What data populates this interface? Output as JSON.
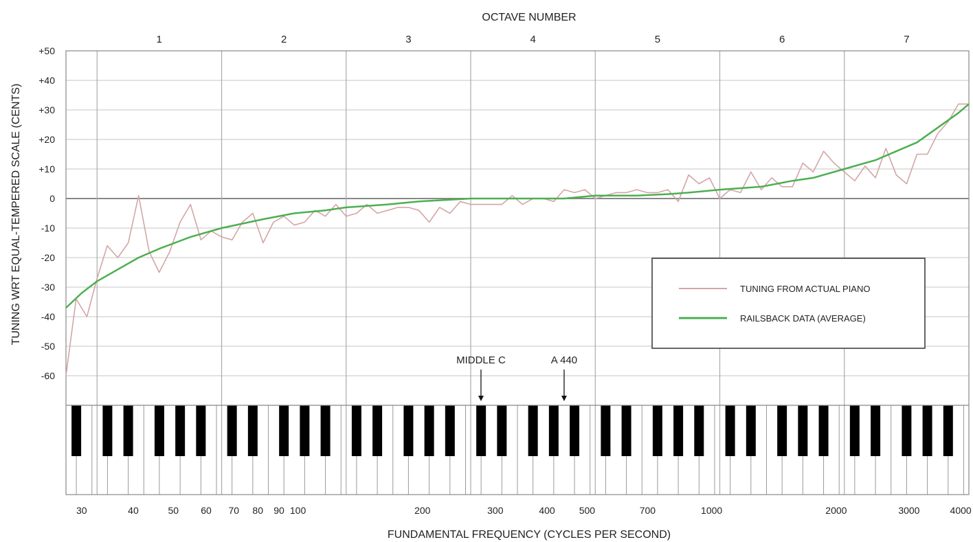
{
  "chart_data": {
    "type": "line",
    "title": "OCTAVE NUMBER",
    "xlabel": "FUNDAMENTAL FREQUENCY (CYCLES PER SECOND)",
    "ylabel": "TUNING WRT EQUAL-TEMPERED SCALE (CENTS)",
    "x_scale": "log",
    "xlim": [
      27.5,
      4186
    ],
    "ylim": [
      -70,
      50
    ],
    "grid": true,
    "legend_position": "right",
    "y_ticks": [
      {
        "value": 50,
        "label": "+50"
      },
      {
        "value": 40,
        "label": "+40"
      },
      {
        "value": 30,
        "label": "+30"
      },
      {
        "value": 20,
        "label": "+20"
      },
      {
        "value": 10,
        "label": "+10"
      },
      {
        "value": 0,
        "label": "0"
      },
      {
        "value": -10,
        "label": "-10"
      },
      {
        "value": -20,
        "label": "-20"
      },
      {
        "value": -30,
        "label": "-30"
      },
      {
        "value": -40,
        "label": "-40"
      },
      {
        "value": -50,
        "label": "-50"
      },
      {
        "value": -60,
        "label": "-60"
      }
    ],
    "x_ticks": [
      {
        "value": 30,
        "label": "30"
      },
      {
        "value": 40,
        "label": "40"
      },
      {
        "value": 50,
        "label": "50"
      },
      {
        "value": 60,
        "label": "60"
      },
      {
        "value": 70,
        "label": "70"
      },
      {
        "value": 80,
        "label": "80"
      },
      {
        "value": 90,
        "label": "90"
      },
      {
        "value": 100,
        "label": "100"
      },
      {
        "value": 200,
        "label": "200"
      },
      {
        "value": 300,
        "label": "300"
      },
      {
        "value": 400,
        "label": "400"
      },
      {
        "value": 500,
        "label": "500"
      },
      {
        "value": 700,
        "label": "700"
      },
      {
        "value": 1000,
        "label": "1000"
      },
      {
        "value": 2000,
        "label": "2000"
      },
      {
        "value": 3000,
        "label": "3000"
      },
      {
        "value": 4000,
        "label": "4000"
      }
    ],
    "octave_boundaries": [
      32.7,
      65.4,
      130.8,
      261.6,
      523.3,
      1046.5,
      2093
    ],
    "octaves": [
      {
        "label": "1",
        "center": 46.2
      },
      {
        "label": "2",
        "center": 92.5
      },
      {
        "label": "3",
        "center": 185
      },
      {
        "label": "4",
        "center": 370
      },
      {
        "label": "5",
        "center": 740
      },
      {
        "label": "6",
        "center": 1480
      },
      {
        "label": "7",
        "center": 2960
      }
    ],
    "annotations": [
      {
        "label": "MIDDLE C",
        "x": 277
      },
      {
        "label": "A 440",
        "x": 440
      }
    ],
    "series": [
      {
        "name": "TUNING FROM ACTUAL PIANO",
        "color": "#d4a5a5",
        "points": [
          [
            27.5,
            -60
          ],
          [
            29.1,
            -34
          ],
          [
            30.9,
            -40
          ],
          [
            32.7,
            -27
          ],
          [
            34.6,
            -16
          ],
          [
            36.7,
            -20
          ],
          [
            38.9,
            -15
          ],
          [
            41.2,
            1
          ],
          [
            43.7,
            -18
          ],
          [
            46.2,
            -25
          ],
          [
            49.0,
            -18
          ],
          [
            51.9,
            -8
          ],
          [
            55.0,
            -2
          ],
          [
            58.3,
            -14
          ],
          [
            61.7,
            -11
          ],
          [
            65.4,
            -13
          ],
          [
            69.3,
            -14
          ],
          [
            73.4,
            -8
          ],
          [
            77.8,
            -5
          ],
          [
            82.4,
            -15
          ],
          [
            87.3,
            -8
          ],
          [
            92.5,
            -6
          ],
          [
            98.0,
            -9
          ],
          [
            103.8,
            -8
          ],
          [
            110.0,
            -4
          ],
          [
            116.5,
            -6
          ],
          [
            123.5,
            -2
          ],
          [
            130.8,
            -6
          ],
          [
            138.6,
            -5
          ],
          [
            146.8,
            -2
          ],
          [
            155.6,
            -5
          ],
          [
            164.8,
            -4
          ],
          [
            174.6,
            -3
          ],
          [
            185.0,
            -3
          ],
          [
            196.0,
            -4
          ],
          [
            207.7,
            -8
          ],
          [
            220.0,
            -3
          ],
          [
            233.1,
            -5
          ],
          [
            246.9,
            -1
          ],
          [
            261.6,
            -2
          ],
          [
            277.2,
            -2
          ],
          [
            293.7,
            -2
          ],
          [
            311.1,
            -2
          ],
          [
            329.6,
            1
          ],
          [
            349.2,
            -2
          ],
          [
            370.0,
            0
          ],
          [
            392.0,
            0
          ],
          [
            415.3,
            -1
          ],
          [
            440.0,
            3
          ],
          [
            466.2,
            2
          ],
          [
            493.9,
            3
          ],
          [
            523.3,
            0
          ],
          [
            554.4,
            1
          ],
          [
            587.3,
            2
          ],
          [
            622.3,
            2
          ],
          [
            659.3,
            3
          ],
          [
            698.5,
            2
          ],
          [
            740.0,
            2
          ],
          [
            784.0,
            3
          ],
          [
            830.6,
            -1
          ],
          [
            880.0,
            8
          ],
          [
            932.3,
            5
          ],
          [
            987.8,
            7
          ],
          [
            1046.5,
            0
          ],
          [
            1108.7,
            3
          ],
          [
            1174.7,
            2
          ],
          [
            1244.5,
            9
          ],
          [
            1318.5,
            3
          ],
          [
            1396.9,
            7
          ],
          [
            1480.0,
            4
          ],
          [
            1568.0,
            4
          ],
          [
            1661.2,
            12
          ],
          [
            1760.0,
            9
          ],
          [
            1864.7,
            16
          ],
          [
            1975.5,
            12
          ],
          [
            2093.0,
            9
          ],
          [
            2217.5,
            6
          ],
          [
            2349.3,
            11
          ],
          [
            2489.0,
            7
          ],
          [
            2637.0,
            17
          ],
          [
            2793.8,
            8
          ],
          [
            2960.0,
            5
          ],
          [
            3136.0,
            15
          ],
          [
            3322.4,
            15
          ],
          [
            3520.0,
            22
          ],
          [
            3729.3,
            26
          ],
          [
            3951.1,
            32
          ],
          [
            4186.0,
            32
          ]
        ]
      },
      {
        "name": "RAILSBACK DATA (AVERAGE)",
        "color": "#4caf50",
        "points": [
          [
            27.5,
            -37
          ],
          [
            30,
            -32
          ],
          [
            32.7,
            -28
          ],
          [
            36.7,
            -24
          ],
          [
            41.2,
            -20
          ],
          [
            46.2,
            -17
          ],
          [
            55,
            -13
          ],
          [
            65.4,
            -10
          ],
          [
            82.4,
            -7
          ],
          [
            98,
            -5
          ],
          [
            116.5,
            -4
          ],
          [
            130.8,
            -3
          ],
          [
            164.8,
            -2
          ],
          [
            196,
            -1
          ],
          [
            261.6,
            0
          ],
          [
            329.6,
            0
          ],
          [
            440,
            0
          ],
          [
            523.3,
            1
          ],
          [
            659.3,
            1
          ],
          [
            784,
            1.5
          ],
          [
            880,
            2
          ],
          [
            1046.5,
            3
          ],
          [
            1318.5,
            4
          ],
          [
            1568,
            6
          ],
          [
            1760,
            7
          ],
          [
            2093,
            10
          ],
          [
            2489,
            13
          ],
          [
            2793.8,
            16
          ],
          [
            3136,
            19
          ],
          [
            3520,
            24
          ],
          [
            3951.1,
            29
          ],
          [
            4186,
            32
          ]
        ]
      }
    ]
  }
}
